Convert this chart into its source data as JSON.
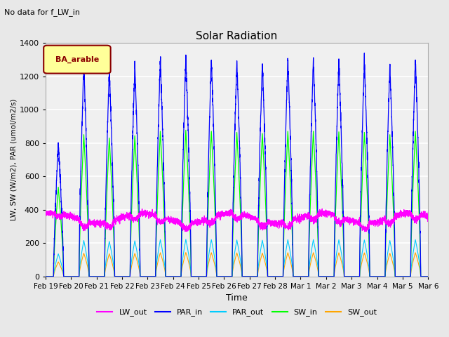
{
  "title": "Solar Radiation",
  "subtitle": "No data for f_LW_in",
  "xlabel": "Time",
  "ylabel": "LW, SW (W/m2), PAR (umol/m2/s)",
  "legend_label": "BA_arable",
  "legend_color": "#8B0000",
  "legend_bg": "#FFFF99",
  "ylim": [
    0,
    1400
  ],
  "yticks": [
    0,
    200,
    400,
    600,
    800,
    1000,
    1200,
    1400
  ],
  "colors": {
    "LW_out": "#FF00FF",
    "PAR_in": "#0000FF",
    "PAR_out": "#00CCFF",
    "SW_in": "#00FF00",
    "SW_out": "#FFA500"
  },
  "num_days": 15,
  "points_per_day": 288,
  "par_in_peaks": [
    800,
    1270,
    1240,
    1260,
    1300,
    1310,
    1300,
    1290,
    1280,
    1300,
    1300,
    1295,
    1290,
    1270,
    1300
  ],
  "lw_base": 350,
  "background_color": "#E8E8E8",
  "plot_bg": "#F0F0F0"
}
